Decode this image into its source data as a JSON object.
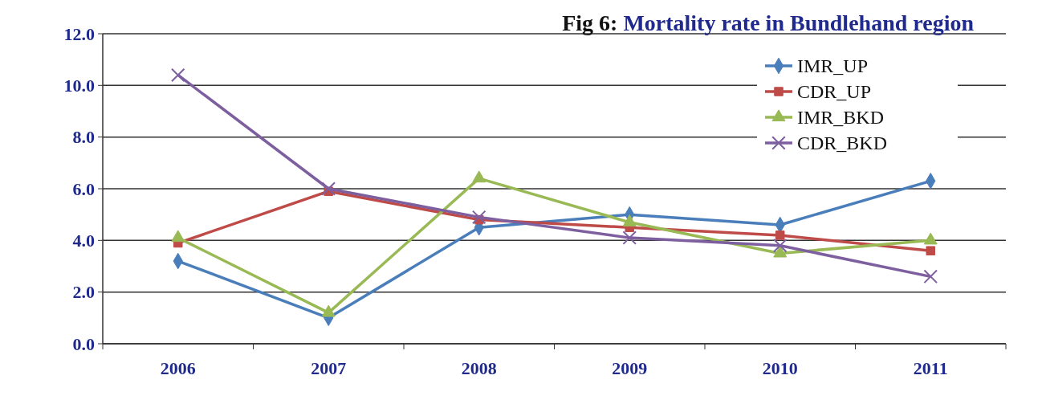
{
  "chart_data": {
    "type": "line",
    "title": "Fig 6: Mortality rate in Bundlehand region",
    "categories": [
      "2006",
      "2007",
      "2008",
      "2009",
      "2010",
      "2011"
    ],
    "series": [
      {
        "name": "IMR_UP",
        "color": "#4a7ebb",
        "marker": "diamond",
        "values": [
          3.2,
          1.0,
          4.5,
          5.0,
          4.6,
          6.3
        ]
      },
      {
        "name": "CDR_UP",
        "color": "#be4b48",
        "marker": "square",
        "values": [
          3.9,
          5.9,
          4.8,
          4.5,
          4.2,
          3.6
        ]
      },
      {
        "name": "IMR_BKD",
        "color": "#98b954",
        "marker": "triangle",
        "values": [
          4.1,
          1.2,
          6.4,
          4.7,
          3.5,
          4.0
        ]
      },
      {
        "name": "CDR_BKD",
        "color": "#7d5fa0",
        "marker": "cross",
        "values": [
          10.4,
          6.0,
          4.9,
          4.1,
          3.8,
          2.6
        ]
      }
    ],
    "ylim": [
      0,
      12
    ],
    "yticks": [
      {
        "value": 0,
        "label": "0.0"
      },
      {
        "value": 2,
        "label": "2.0"
      },
      {
        "value": 4,
        "label": "4.0"
      },
      {
        "value": 6,
        "label": "6.0"
      },
      {
        "value": 8,
        "label": "8.0"
      },
      {
        "value": 10,
        "label": "10.0"
      },
      {
        "value": 12,
        "label": "12.0"
      }
    ],
    "grid": "y",
    "legend": "top right"
  }
}
